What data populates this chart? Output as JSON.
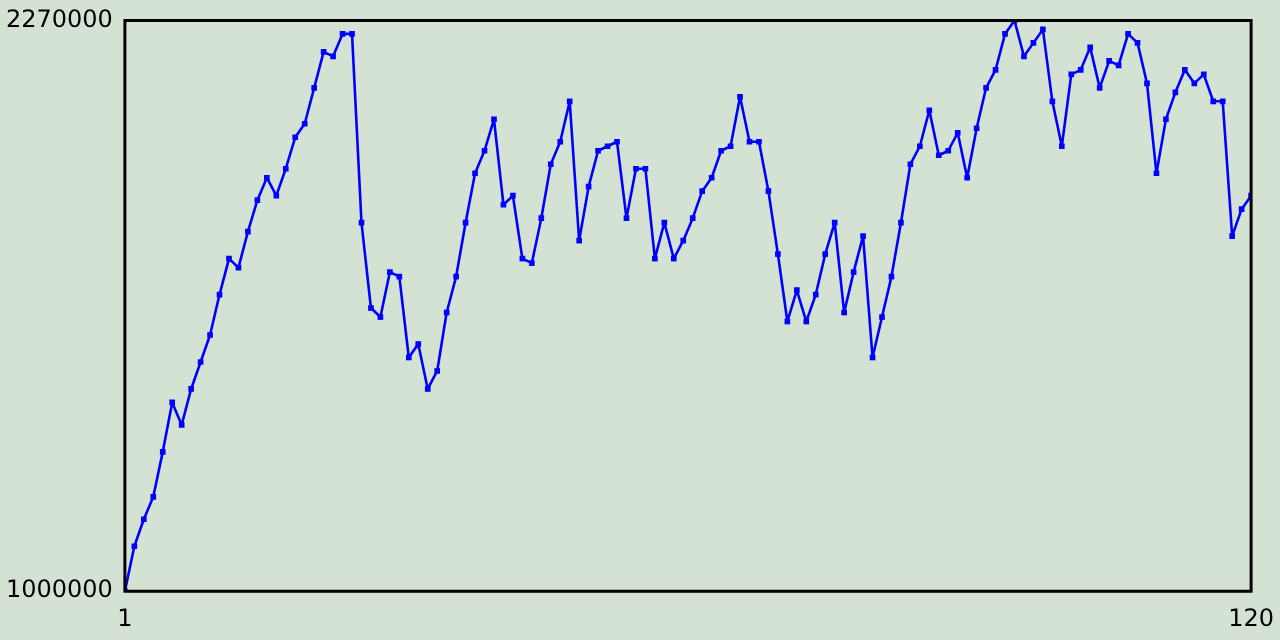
{
  "chart_data": {
    "type": "line",
    "x": [
      1,
      2,
      3,
      4,
      5,
      6,
      7,
      8,
      9,
      10,
      11,
      12,
      13,
      14,
      15,
      16,
      17,
      18,
      19,
      20,
      21,
      22,
      23,
      24,
      25,
      26,
      27,
      28,
      29,
      30,
      31,
      32,
      33,
      34,
      35,
      36,
      37,
      38,
      39,
      40,
      41,
      42,
      43,
      44,
      45,
      46,
      47,
      48,
      49,
      50,
      51,
      52,
      53,
      54,
      55,
      56,
      57,
      58,
      59,
      60,
      61,
      62,
      63,
      64,
      65,
      66,
      67,
      68,
      69,
      70,
      71,
      72,
      73,
      74,
      75,
      76,
      77,
      78,
      79,
      80,
      81,
      82,
      83,
      84,
      85,
      86,
      87,
      88,
      89,
      90,
      91,
      92,
      93,
      94,
      95,
      96,
      97,
      98,
      99,
      100,
      101,
      102,
      103,
      104,
      105,
      106,
      107,
      108,
      109,
      110,
      111,
      112,
      113,
      114,
      115,
      116,
      117,
      118,
      119,
      120
    ],
    "series": [
      {
        "color": "#0000ff",
        "values": [
          1000000,
          1100000,
          1160000,
          1210000,
          1310000,
          1420000,
          1370000,
          1450000,
          1510000,
          1570000,
          1660000,
          1740000,
          1720000,
          1800000,
          1870000,
          1920000,
          1880000,
          1940000,
          2010000,
          2040000,
          2120000,
          2200000,
          2190000,
          2240000,
          2240000,
          1820000,
          1630000,
          1610000,
          1710000,
          1700000,
          1520000,
          1550000,
          1450000,
          1490000,
          1620000,
          1700000,
          1820000,
          1930000,
          1980000,
          2050000,
          1860000,
          1880000,
          1740000,
          1730000,
          1830000,
          1950000,
          2000000,
          2090000,
          1780000,
          1900000,
          1980000,
          1990000,
          2000000,
          1830000,
          1940000,
          1940000,
          1740000,
          1820000,
          1740000,
          1780000,
          1830000,
          1890000,
          1920000,
          1980000,
          1990000,
          2100000,
          2000000,
          2000000,
          1890000,
          1750000,
          1600000,
          1670000,
          1600000,
          1660000,
          1750000,
          1820000,
          1620000,
          1710000,
          1790000,
          1520000,
          1610000,
          1700000,
          1820000,
          1950000,
          1990000,
          2070000,
          1970000,
          1980000,
          2020000,
          1920000,
          2030000,
          2120000,
          2160000,
          2240000,
          2270000,
          2190000,
          2220000,
          2250000,
          2090000,
          1990000,
          2150000,
          2160000,
          2210000,
          2120000,
          2180000,
          2170000,
          2240000,
          2220000,
          2130000,
          1930000,
          2050000,
          2110000,
          2160000,
          2130000,
          2150000,
          2090000,
          2090000,
          1790000,
          1850000,
          1880000
        ]
      }
    ],
    "xlim": [
      1,
      120
    ],
    "xticks": [
      1,
      120
    ],
    "ylim": [
      1000000,
      2270000
    ],
    "yticks": [
      1000000,
      2270000
    ],
    "grid": false,
    "legend": false,
    "marker": "square",
    "line_style": "solid"
  }
}
